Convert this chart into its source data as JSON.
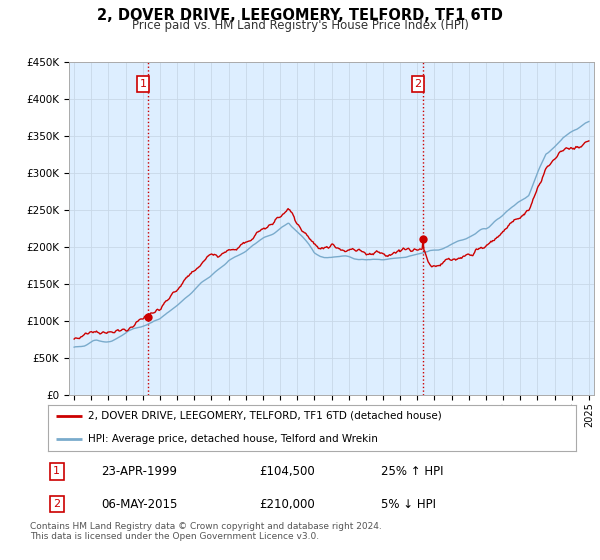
{
  "title": "2, DOVER DRIVE, LEEGOMERY, TELFORD, TF1 6TD",
  "subtitle": "Price paid vs. HM Land Registry's House Price Index (HPI)",
  "ylim": [
    0,
    450000
  ],
  "yticks": [
    0,
    50000,
    100000,
    150000,
    200000,
    250000,
    300000,
    350000,
    400000,
    450000
  ],
  "ytick_labels": [
    "£0",
    "£50K",
    "£100K",
    "£150K",
    "£200K",
    "£250K",
    "£300K",
    "£350K",
    "£400K",
    "£450K"
  ],
  "red_line_color": "#cc0000",
  "blue_line_color": "#7aabcc",
  "chart_bg_color": "#ddeeff",
  "sale1_year": 1999.31,
  "sale1_price": 104500,
  "sale2_year": 2015.35,
  "sale2_price": 210000,
  "vline_color": "#cc0000",
  "legend_line1": "2, DOVER DRIVE, LEEGOMERY, TELFORD, TF1 6TD (detached house)",
  "legend_line2": "HPI: Average price, detached house, Telford and Wrekin",
  "table_row1": [
    "1",
    "23-APR-1999",
    "£104,500",
    "25% ↑ HPI"
  ],
  "table_row2": [
    "2",
    "06-MAY-2015",
    "£210,000",
    "5% ↓ HPI"
  ],
  "footer": "Contains HM Land Registry data © Crown copyright and database right 2024.\nThis data is licensed under the Open Government Licence v3.0.",
  "background_color": "#ffffff",
  "grid_color": "#c8d8e8"
}
